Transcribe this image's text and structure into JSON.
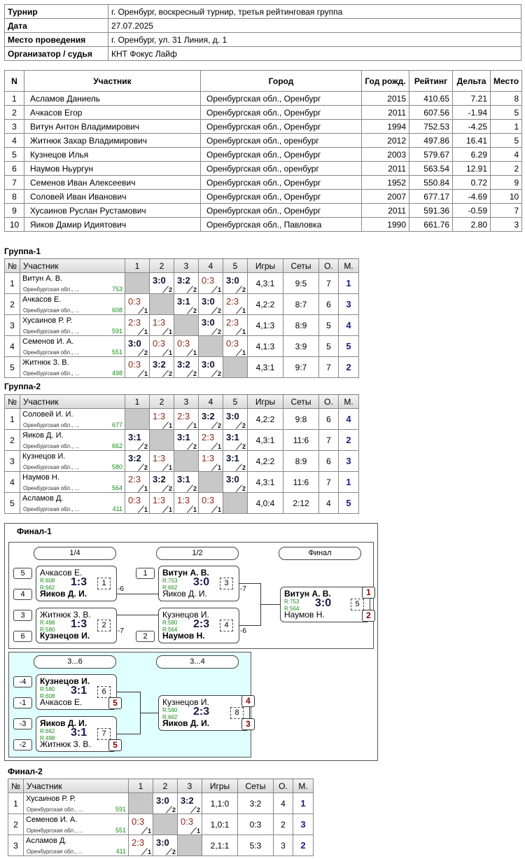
{
  "info": {
    "rows": [
      [
        "Турнир",
        "г. Оренбург, воскресный турнир, третья рейтинговая группа"
      ],
      [
        "Дата",
        "27.07.2025"
      ],
      [
        "Место проведения",
        "г. Оренбург, ул. 31 Линия, д. 1"
      ],
      [
        "Организатор / судья",
        "КНТ Фокус Лайф"
      ]
    ]
  },
  "participants": {
    "header": [
      "N",
      "Участник",
      "Город",
      "Год рожд.",
      "Рейтинг",
      "Дельта",
      "Место"
    ],
    "rows": [
      [
        "1",
        "Асламов Даниель",
        "Оренбургская обл., Оренбург",
        "2015",
        "410.65",
        "7.21",
        "8"
      ],
      [
        "2",
        "Ачкасов Егор",
        "Оренбургская обл., Оренбург",
        "2011",
        "607.56",
        "-1.94",
        "5"
      ],
      [
        "3",
        "Витун Антон Владимирович",
        "Оренбургская обл., Оренбург",
        "1994",
        "752.53",
        "-4.25",
        "1"
      ],
      [
        "4",
        "Житнюк Захар Владимирович",
        "Оренбургская обл., оренбург",
        "2012",
        "497.86",
        "16.41",
        "5"
      ],
      [
        "5",
        "Кузнецов Илья",
        "Оренбургская обл., Оренбург",
        "2003",
        "579.67",
        "6.29",
        "4"
      ],
      [
        "6",
        "Наумов Ньургун",
        "Оренбургская обл., оренбург",
        "2011",
        "563.54",
        "12.91",
        "2"
      ],
      [
        "7",
        "Семенов Иван Алексеевич",
        "Оренбургская обл., Оренбург",
        "1952",
        "550.84",
        "0.72",
        "9"
      ],
      [
        "8",
        "Соловей Иван Иванович",
        "Оренбургская обл., Оренбург",
        "2007",
        "677.17",
        "-4.69",
        "10"
      ],
      [
        "9",
        "Хусаинов Руслан Рустамович",
        "Оренбургская обл., Оренбург",
        "2011",
        "591.36",
        "-0.59",
        "7"
      ],
      [
        "10",
        "Яиков Дамир Идиятович",
        "Оренбургская обл., Павловка",
        "1990",
        "661.76",
        "2.80",
        "3"
      ]
    ]
  },
  "groups": [
    {
      "title": "Группа-1",
      "header": [
        "№",
        "Участник",
        "1",
        "2",
        "3",
        "4",
        "5",
        "Игры",
        "Сеты",
        "О.",
        "М."
      ],
      "rows": [
        {
          "no": "1",
          "name": "Витун А. В.",
          "city": "Оренбургская обл., ...",
          "rating": "753",
          "cells": [
            null,
            {
              "score": "3:0",
              "pts": "2"
            },
            {
              "score": "3:2",
              "pts": "2"
            },
            {
              "score": "0:3",
              "pts": "1"
            },
            {
              "score": "3:0",
              "pts": "2"
            }
          ],
          "games": "4,3:1",
          "sets": "9:5",
          "points": "7",
          "place": "1"
        },
        {
          "no": "2",
          "name": "Ачкасов Е.",
          "city": "Оренбургская обл., ...",
          "rating": "608",
          "cells": [
            {
              "score": "0:3",
              "pts": "1"
            },
            null,
            {
              "score": "3:1",
              "pts": "2"
            },
            {
              "score": "3:0",
              "pts": "2"
            },
            {
              "score": "2:3",
              "pts": "1"
            }
          ],
          "games": "4,2:2",
          "sets": "8:7",
          "points": "6",
          "place": "3"
        },
        {
          "no": "3",
          "name": "Хусаинов Р. Р.",
          "city": "Оренбургская обл., ...",
          "rating": "591",
          "cells": [
            {
              "score": "2:3",
              "pts": "1"
            },
            {
              "score": "1:3",
              "pts": "1"
            },
            null,
            {
              "score": "3:0",
              "pts": "2"
            },
            {
              "score": "2:3",
              "pts": "1"
            }
          ],
          "games": "4,1:3",
          "sets": "8:9",
          "points": "5",
          "place": "4"
        },
        {
          "no": "4",
          "name": "Семенов И. А.",
          "city": "Оренбургская обл., ...",
          "rating": "551",
          "cells": [
            {
              "score": "3:0",
              "pts": "2"
            },
            {
              "score": "0:3",
              "pts": "1"
            },
            {
              "score": "0:3",
              "pts": "1"
            },
            null,
            {
              "score": "0:3",
              "pts": "1"
            }
          ],
          "games": "4,1:3",
          "sets": "3:9",
          "points": "5",
          "place": "5"
        },
        {
          "no": "5",
          "name": "Житнюк З. В.",
          "city": "Оренбургская обл., ...",
          "rating": "498",
          "cells": [
            {
              "score": "0:3",
              "pts": "1"
            },
            {
              "score": "3:2",
              "pts": "2"
            },
            {
              "score": "3:2",
              "pts": "2"
            },
            {
              "score": "3:0",
              "pts": "2"
            },
            null
          ],
          "games": "4,3:1",
          "sets": "9:7",
          "points": "7",
          "place": "2"
        }
      ]
    },
    {
      "title": "Группа-2",
      "header": [
        "№",
        "Участник",
        "1",
        "2",
        "3",
        "4",
        "5",
        "Игры",
        "Сеты",
        "О.",
        "М."
      ],
      "rows": [
        {
          "no": "1",
          "name": "Соловей И. И.",
          "city": "Оренбургская обл., ...",
          "rating": "677",
          "cells": [
            null,
            {
              "score": "1:3",
              "pts": "1"
            },
            {
              "score": "2:3",
              "pts": "1"
            },
            {
              "score": "3:2",
              "pts": "2"
            },
            {
              "score": "3:0",
              "pts": "2"
            }
          ],
          "games": "4,2:2",
          "sets": "9:8",
          "points": "6",
          "place": "4"
        },
        {
          "no": "2",
          "name": "Яиков Д. И.",
          "city": "Оренбургская обл., ...",
          "rating": "662",
          "cells": [
            {
              "score": "3:1",
              "pts": "2"
            },
            null,
            {
              "score": "3:1",
              "pts": "2"
            },
            {
              "score": "2:3",
              "pts": "1"
            },
            {
              "score": "3:1",
              "pts": "2"
            }
          ],
          "games": "4,3:1",
          "sets": "11:6",
          "points": "7",
          "place": "2"
        },
        {
          "no": "3",
          "name": "Кузнецов И.",
          "city": "Оренбургская обл., ...",
          "rating": "580",
          "cells": [
            {
              "score": "3:2",
              "pts": "2"
            },
            {
              "score": "1:3",
              "pts": "1"
            },
            null,
            {
              "score": "1:3",
              "pts": "1"
            },
            {
              "score": "3:1",
              "pts": "2"
            }
          ],
          "games": "4,2:2",
          "sets": "8:9",
          "points": "6",
          "place": "3"
        },
        {
          "no": "4",
          "name": "Наумов Н.",
          "city": "Оренбургская обл., ...",
          "rating": "564",
          "cells": [
            {
              "score": "2:3",
              "pts": "1"
            },
            {
              "score": "3:2",
              "pts": "2"
            },
            {
              "score": "3:1",
              "pts": "2"
            },
            null,
            {
              "score": "3:0",
              "pts": "2"
            }
          ],
          "games": "4,3:1",
          "sets": "11:6",
          "points": "7",
          "place": "1"
        },
        {
          "no": "5",
          "name": "Асламов Д.",
          "city": "Оренбургская обл., ...",
          "rating": "411",
          "cells": [
            {
              "score": "0:3",
              "pts": "1"
            },
            {
              "score": "1:3",
              "pts": "1"
            },
            {
              "score": "1:3",
              "pts": "1"
            },
            {
              "score": "0:3",
              "pts": "1"
            },
            null
          ],
          "games": "4,0:4",
          "sets": "2:12",
          "points": "4",
          "place": "5"
        }
      ]
    }
  ],
  "final1": {
    "title": "Финал-1",
    "rounds": [
      "1/4",
      "1/2",
      "Финал"
    ],
    "rounds2": [
      "3...6",
      "3...4"
    ],
    "matches": [
      {
        "seeds": [
          "5",
          "4"
        ],
        "players": [
          "Ачкасов Е.",
          "Яиков Д. И."
        ],
        "ratings": [
          "R:608",
          "R:662"
        ],
        "score": "1:3",
        "no": "1",
        "loser": "-6"
      },
      {
        "seeds": [
          "3",
          "6"
        ],
        "players": [
          "Житнюк З. В.",
          "Кузнецов И."
        ],
        "ratings": [
          "R:498",
          "R:580"
        ],
        "score": "1:3",
        "no": "2",
        "loser": "-7"
      },
      {
        "seeds": [
          "1"
        ],
        "players": [
          "Витун А. В.",
          "Яиков Д. И."
        ],
        "ratings": [
          "R:753",
          "R:662"
        ],
        "score": "3:0",
        "no": "3",
        "loser": "-7"
      },
      {
        "seeds": [
          "2"
        ],
        "players": [
          "Кузнецов И.",
          "Наумов Н."
        ],
        "ratings": [
          "R:580",
          "R:564"
        ],
        "score": "2:3",
        "no": "4",
        "loser": "-6"
      },
      {
        "players": [
          "Витун А. В.",
          "Наумов Н."
        ],
        "ratings": [
          "R:753",
          "R:564"
        ],
        "score": "3:0",
        "no": "5",
        "places": [
          "1",
          "2"
        ]
      },
      {
        "seeds": [
          "-4",
          "-1"
        ],
        "players": [
          "Кузнецов И.",
          "Ачкасов Е."
        ],
        "ratings": [
          "R:580",
          "R:608"
        ],
        "score": "3:1",
        "no": "6",
        "places": [
          "5"
        ]
      },
      {
        "seeds": [
          "-3",
          "-2"
        ],
        "players": [
          "Яиков Д. И.",
          "Житнюк З. В."
        ],
        "ratings": [
          "R:662",
          "R:498"
        ],
        "score": "3:1",
        "no": "7",
        "places": [
          "5"
        ]
      },
      {
        "players": [
          "Кузнецов И.",
          "Яиков Д. И."
        ],
        "ratings": [
          "R:580",
          "R:662"
        ],
        "score": "2:3",
        "no": "8",
        "places": [
          "4",
          "3"
        ]
      }
    ]
  },
  "final2": {
    "title": "Финал-2",
    "header": [
      "№",
      "Участник",
      "1",
      "2",
      "3",
      "Игры",
      "Сеты",
      "О.",
      "М."
    ],
    "rows": [
      {
        "no": "1",
        "name": "Хусаинов Р. Р.",
        "city": "Оренбургская обл., ...",
        "rating": "591",
        "cells": [
          null,
          {
            "score": "3:0",
            "pts": "2"
          },
          {
            "score": "3:2",
            "pts": "2"
          }
        ],
        "games": "1,1:0",
        "sets": "3:2",
        "points": "4",
        "place": "1"
      },
      {
        "no": "2",
        "name": "Семенов И. А.",
        "city": "Оренбургская обл., ...",
        "rating": "551",
        "cells": [
          {
            "score": "0:3",
            "pts": "1"
          },
          null,
          {
            "score": "0:3",
            "pts": "1"
          }
        ],
        "games": "1,0:1",
        "sets": "0:3",
        "points": "2",
        "place": "3"
      },
      {
        "no": "3",
        "name": "Асламов Д.",
        "city": "Оренбургская обл., ...",
        "rating": "411",
        "cells": [
          {
            "score": "2:3",
            "pts": "1"
          },
          {
            "score": "3:0",
            "pts": "2"
          },
          null
        ],
        "games": "2,1:1",
        "sets": "5:3",
        "points": "3",
        "place": "2"
      }
    ]
  }
}
